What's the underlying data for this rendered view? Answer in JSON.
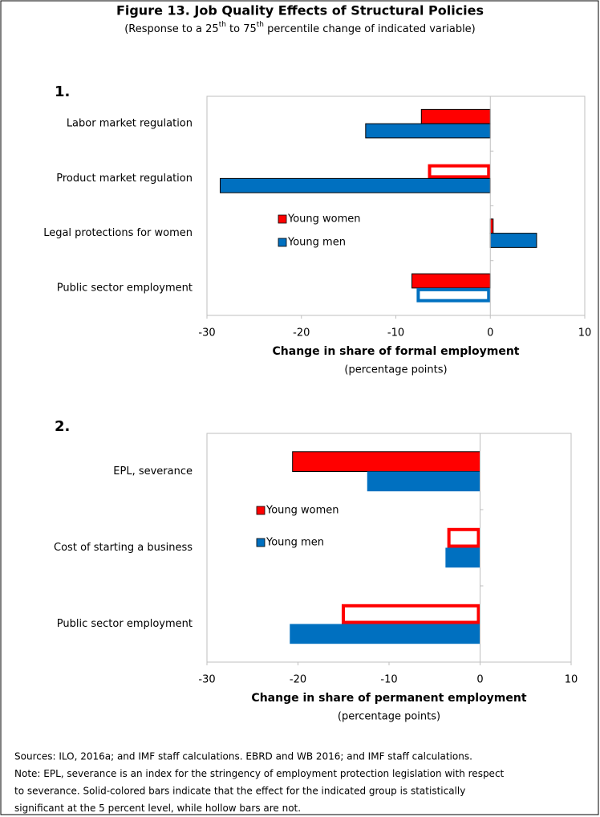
{
  "figure_title": "Figure 13. Job Quality Effects of Structural Policies",
  "subtitle": [
    "(Response to a 25",
    "th",
    " to 75",
    "th",
    " percentile change of indicated variable)"
  ],
  "chart_data": [
    {
      "type": "barh",
      "panel": "1.",
      "categories": [
        "Labor market regulation",
        "Product market regulation",
        "Legal protections for women",
        "Public sector employment"
      ],
      "series": [
        {
          "name": "Young women",
          "color": "#ff0000",
          "edgecolor": "#000000",
          "values": [
            -7.3,
            -6.6,
            0.3,
            -8.3
          ],
          "filled": [
            true,
            false,
            true,
            true
          ]
        },
        {
          "name": "Young men",
          "color": "#0070c0",
          "edgecolor": "#000000",
          "values": [
            -13.2,
            -28.6,
            4.9,
            -7.8
          ],
          "filled": [
            true,
            true,
            true,
            false
          ]
        }
      ],
      "xlim": [
        -30,
        10
      ],
      "xticks": [
        -30,
        -20,
        -10,
        0,
        10
      ],
      "xlabel": "Change in share of formal employment",
      "xlabel_note": "(percentage points)"
    },
    {
      "type": "barh",
      "panel": "2.",
      "categories": [
        "EPL, severance",
        "Cost of starting a business",
        "Public sector employment"
      ],
      "series": [
        {
          "name": "Young women",
          "color": "#ff0000",
          "edgecolor": "#000000",
          "values": [
            -20.6,
            -3.6,
            -15.2
          ],
          "filled": [
            true,
            false,
            false
          ]
        },
        {
          "name": "Young men",
          "color": "#0070c0",
          "values": [
            -12.4,
            -3.8,
            -20.9
          ],
          "filled": [
            true,
            true,
            true
          ]
        }
      ],
      "xlim": [
        -30,
        10
      ],
      "xticks": [
        -30,
        -20,
        -10,
        0,
        10
      ],
      "xlabel": "Change in share of permanent employment",
      "xlabel_note": "(percentage points)"
    }
  ],
  "notes": [
    "Sources: ILO, 2016a; and IMF staff calculations. EBRD and WB 2016; and IMF staff calculations.",
    "Note: EPL, severance is an index for the stringency of employment protection legislation with respect",
    "to severance. Solid-colored bars indicate that the effect for the indicated group is statistically",
    "significant at the 5 percent level, while hollow bars are not."
  ]
}
